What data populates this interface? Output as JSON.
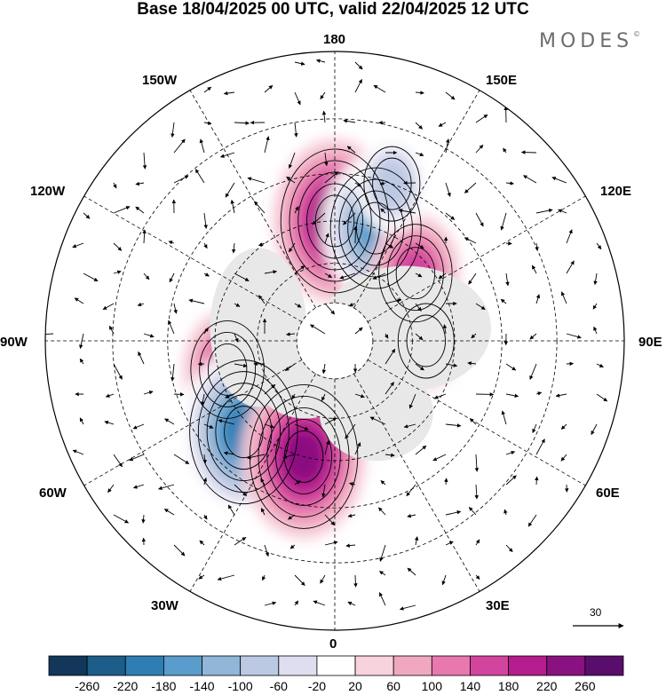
{
  "header": {
    "title": "Base 18/04/2025 00 UTC, valid 22/04/2025 12 UTC",
    "brand": "MODES",
    "brand_mark": "©"
  },
  "map": {
    "projection": "north-polar-stereographic",
    "longitude_labels": {
      "top": "180",
      "top_left": "150W",
      "top_right": "150E",
      "upper_left": "120W",
      "upper_right": "120E",
      "left": "90W",
      "right": "90E",
      "lower_left": "60W",
      "lower_right": "60E",
      "bottom_left": "30W",
      "bottom_right": "30E",
      "bottom": "0"
    },
    "anomaly_centers": [
      {
        "name": "positive-north-pacific",
        "lon": 180,
        "lat": 45,
        "value": 220
      },
      {
        "name": "negative-east-asia",
        "lon": 160,
        "lat": 45,
        "value": -180
      },
      {
        "name": "positive-east-asia",
        "lon": 130,
        "lat": 50,
        "value": 140
      },
      {
        "name": "negative-gulf-of-alaska",
        "lon": 160,
        "lat": 30,
        "value": -100
      },
      {
        "name": "positive-hudson-bay",
        "lon": -75,
        "lat": 48,
        "value": 140
      },
      {
        "name": "negative-north-atlantic",
        "lon": -45,
        "lat": 42,
        "value": -220
      },
      {
        "name": "positive-east-atlantic",
        "lon": -15,
        "lat": 45,
        "value": 220
      },
      {
        "name": "positive-siberia",
        "lon": 90,
        "lat": 55,
        "value": 100
      }
    ]
  },
  "vector_scale": {
    "value": "30"
  },
  "colorbar": {
    "ticks": [
      "-260",
      "-220",
      "-180",
      "-140",
      "-100",
      "-60",
      "-20",
      "20",
      "60",
      "100",
      "140",
      "180",
      "220",
      "260"
    ],
    "colors": [
      "#12375a",
      "#1c5d8a",
      "#2e7eb4",
      "#5a9ccc",
      "#90b6d8",
      "#bcc9e3",
      "#dedef0",
      "#ffffff",
      "#f7d3dd",
      "#f0a8c0",
      "#e878ae",
      "#d2459e",
      "#b51c8e",
      "#8a1180",
      "#5a0e6b"
    ]
  }
}
